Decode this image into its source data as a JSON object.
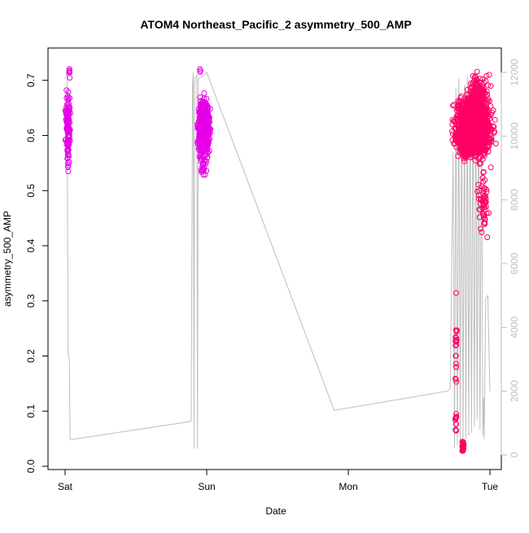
{
  "chart_data": {
    "type": "scatter",
    "title": "ATOM4 Northeast_Pacific_2 asymmetry_500_AMP",
    "xlabel": "Date",
    "ylabel": "asymmetry_500_AMP",
    "x_ticks": [
      "Sat",
      "Sun",
      "Mon",
      "Tue"
    ],
    "x_range_days": [
      -0.04,
      3.05
    ],
    "y_ticks": [
      "0.0",
      "0.1",
      "0.2",
      "0.3",
      "0.4",
      "0.5",
      "0.6",
      "0.7"
    ],
    "ylim": [
      0.0,
      0.73
    ],
    "y2_ticks": [
      "0",
      "2000",
      "4000",
      "6000",
      "8000",
      "10000",
      "12000"
    ],
    "y2lim": [
      0,
      12000
    ],
    "grid": false,
    "colors": {
      "points_early": "#e600e6",
      "points_late": "#ff0066",
      "secondary_line": "#bebebe",
      "axis": "#000000"
    },
    "point_clusters": [
      {
        "x_center": 0.02,
        "x_spread": 0.012,
        "y_center": 0.62,
        "y_spread": 0.045,
        "count": 110,
        "color": "points_early"
      },
      {
        "x_center": 0.02,
        "x_spread": 0.006,
        "y_center": 0.56,
        "y_spread": 0.025,
        "count": 12,
        "color": "points_early"
      },
      {
        "x_center": 0.03,
        "x_spread": 0.004,
        "y_center": 0.715,
        "y_spread": 0.01,
        "count": 6,
        "color": "points_early"
      },
      {
        "x_center": 0.98,
        "x_spread": 0.03,
        "y_center": 0.615,
        "y_spread": 0.035,
        "count": 700,
        "color": "points_early"
      },
      {
        "x_center": 0.98,
        "x_spread": 0.02,
        "y_center": 0.56,
        "y_spread": 0.03,
        "count": 40,
        "color": "points_early"
      },
      {
        "x_center": 0.95,
        "x_spread": 0.01,
        "y_center": 0.72,
        "y_spread": 0.006,
        "count": 3,
        "color": "points_early"
      },
      {
        "x_center": 2.88,
        "x_spread": 0.09,
        "y_center": 0.615,
        "y_spread": 0.04,
        "count": 1800,
        "color": "points_late"
      },
      {
        "x_center": 2.92,
        "x_spread": 0.06,
        "y_center": 0.67,
        "y_spread": 0.03,
        "count": 200,
        "color": "points_late"
      },
      {
        "x_center": 2.95,
        "x_spread": 0.03,
        "y_center": 0.48,
        "y_spread": 0.05,
        "count": 60,
        "color": "points_late"
      },
      {
        "x_center": 2.76,
        "x_spread": 0.004,
        "y_center": 0.21,
        "y_spread": 0.05,
        "count": 20,
        "color": "points_late"
      },
      {
        "x_center": 2.76,
        "x_spread": 0.004,
        "y_center": 0.08,
        "y_spread": 0.02,
        "count": 12,
        "color": "points_late"
      },
      {
        "x_center": 2.81,
        "x_spread": 0.004,
        "y_center": 0.035,
        "y_spread": 0.007,
        "count": 30,
        "color": "points_late"
      },
      {
        "x_center": 2.76,
        "x_spread": 0.003,
        "y_center": 0.315,
        "y_spread": 0.003,
        "count": 1,
        "color": "points_late"
      }
    ],
    "secondary_line": [
      [
        0.0,
        11800
      ],
      [
        0.01,
        12000
      ],
      [
        0.015,
        11900
      ],
      [
        0.02,
        3200
      ],
      [
        0.03,
        3000
      ],
      [
        0.035,
        500
      ],
      [
        0.04,
        480
      ],
      [
        0.89,
        1050
      ],
      [
        0.9,
        11600
      ],
      [
        0.905,
        12000
      ],
      [
        0.91,
        200
      ],
      [
        0.915,
        11800
      ],
      [
        0.93,
        11900
      ],
      [
        0.935,
        200
      ],
      [
        0.94,
        11800
      ],
      [
        0.98,
        11900
      ],
      [
        1.0,
        12000
      ],
      [
        1.9,
        1400
      ],
      [
        2.7,
        2000
      ],
      [
        2.72,
        2100
      ],
      [
        2.73,
        6000
      ],
      [
        2.74,
        9500
      ],
      [
        2.75,
        200
      ],
      [
        2.76,
        11500
      ],
      [
        2.77,
        300
      ],
      [
        2.78,
        11800
      ],
      [
        2.79,
        400
      ],
      [
        2.8,
        11200
      ],
      [
        2.81,
        300
      ],
      [
        2.82,
        11600
      ],
      [
        2.83,
        500
      ],
      [
        2.84,
        11900
      ],
      [
        2.85,
        600
      ],
      [
        2.86,
        11700
      ],
      [
        2.87,
        700
      ],
      [
        2.88,
        11800
      ],
      [
        2.89,
        900
      ],
      [
        2.9,
        11900
      ],
      [
        2.91,
        1100
      ],
      [
        2.92,
        11800
      ],
      [
        2.93,
        800
      ],
      [
        2.94,
        11400
      ],
      [
        2.95,
        600
      ],
      [
        2.955,
        1800
      ],
      [
        2.96,
        500
      ],
      [
        2.97,
        4900
      ],
      [
        2.985,
        5000
      ],
      [
        2.995,
        3000
      ],
      [
        3.0,
        2000
      ]
    ]
  }
}
